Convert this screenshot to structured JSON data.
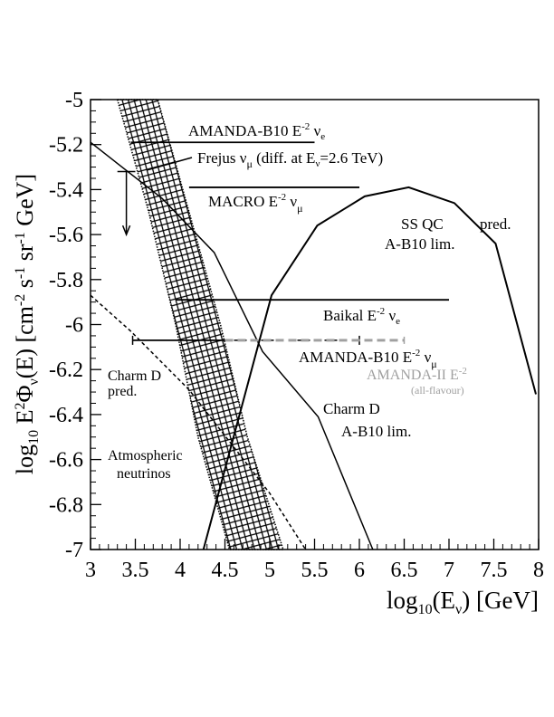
{
  "chart_data": {
    "type": "line",
    "title": "",
    "xlabel": "log10(Eν) [GeV]",
    "ylabel": "log10 E²Φν(E) [cm⁻² s⁻¹ sr⁻¹ GeV]",
    "xlim": [
      3,
      8
    ],
    "ylim": [
      -7,
      -5
    ],
    "x_ticks": [
      "3",
      "3.5",
      "4",
      "4.5",
      "5",
      "5.5",
      "6",
      "6.5",
      "7",
      "7.5",
      "8"
    ],
    "y_ticks": [
      "-5",
      "-5.2",
      "-5.4",
      "-5.6",
      "-5.8",
      "-6",
      "-6.2",
      "-6.4",
      "-6.6",
      "-6.8",
      "-7"
    ],
    "grid": false,
    "series": [
      {
        "name": "Charm D A-B10 lim.",
        "style": "solid",
        "label": [
          "Charm D",
          "A-B10 lim."
        ],
        "x": [
          3.0,
          3.8,
          4.38,
          4.92,
          5.54,
          6.15
        ],
        "y": [
          -5.19,
          -5.44,
          -5.68,
          -6.12,
          -6.41,
          -7.0
        ]
      },
      {
        "name": "SS QC A-B10 lim.",
        "style": "solid",
        "label": [
          "SS QC",
          "A-B10 lim."
        ],
        "x": [
          4.26,
          5.02,
          5.53,
          6.06,
          6.55,
          7.06,
          7.52,
          7.97
        ],
        "y": [
          -7.0,
          -5.87,
          -5.56,
          -5.43,
          -5.39,
          -5.46,
          -5.64,
          -6.31
        ]
      },
      {
        "name": "SS QC pred.",
        "label": [
          "pred."
        ]
      },
      {
        "name": "Charm D pred.",
        "style": "dashed",
        "label": [
          "Charm D",
          "pred."
        ],
        "x": [
          3.0,
          3.45,
          4.1,
          5.0,
          5.4
        ],
        "y": [
          -5.87,
          -6.03,
          -6.29,
          -6.75,
          -7.0
        ]
      },
      {
        "name": "Atmospheric neutrinos",
        "style": "crosshatch-band",
        "label": [
          "Atmospheric",
          "neutrinos"
        ],
        "upper_x": [
          3.75,
          4.1,
          4.45,
          4.75,
          5.15
        ],
        "upper_y": [
          -5.0,
          -5.5,
          -6.0,
          -6.5,
          -7.0
        ],
        "lower_x": [
          3.3,
          3.65,
          3.95,
          4.2,
          4.55
        ],
        "lower_y": [
          -5.0,
          -5.5,
          -6.0,
          -6.5,
          -7.0
        ]
      }
    ],
    "limits": [
      {
        "name": "AMANDA-B10 E⁻² νe",
        "text": "AMANDA-B10 E",
        "sup": "-2",
        "nu": "ν",
        "sub": "e",
        "x": [
          3.45,
          5.5
        ],
        "y": -5.19,
        "color": "#000000"
      },
      {
        "name": "MACRO E⁻² νμ",
        "text": "MACRO E",
        "sup": "-2",
        "nu": "ν",
        "sub": "μ",
        "x": [
          4.1,
          6.0
        ],
        "y": -5.39,
        "color": "#000000"
      },
      {
        "name": "Baikal E⁻² νe",
        "text": "Baikal E",
        "sup": "-2",
        "nu": "ν",
        "sub": "e",
        "x": [
          3.95,
          7.0
        ],
        "y": -5.89,
        "color": "#000000"
      },
      {
        "name": "AMANDA-B10 E⁻² νμ",
        "text": "AMANDA-B10 E",
        "sup": "-2",
        "nu": "ν",
        "sub": "μ",
        "x": [
          3.47,
          6.0
        ],
        "y": -6.07,
        "color": "#000000"
      },
      {
        "name": "AMANDA-II E⁻² (all-flavour)",
        "text": "AMANDA-II E",
        "sup": "-2",
        "note": "(all-flavour)",
        "x": [
          4.5,
          6.5
        ],
        "y": -6.07,
        "color": "#a0a0a0"
      }
    ],
    "frejus": {
      "text": "Frejus ν",
      "sub": "μ",
      "rest": " (diff. at E",
      "sub2": "ν",
      "rest2": "=2.6 TeV)",
      "x": 3.4,
      "y": -5.32,
      "arrow_to": -5.6
    }
  }
}
